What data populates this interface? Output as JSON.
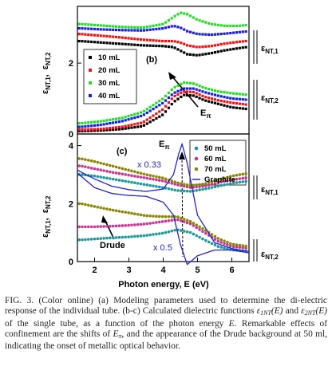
{
  "chart_data": [
    {
      "panel_label": "(b)",
      "type": "line",
      "xlim": [
        1.5,
        6.5
      ],
      "ylim": [
        0,
        3.6
      ],
      "y_ticks": [
        0,
        2
      ],
      "y_label_main": "ε",
      "y_label_sub_1": "NT,1",
      "y_label_comma": ",",
      "y_label_main_2": "ε",
      "y_label_sub_2": "NT,2",
      "right_labels": [
        {
          "main": "ε",
          "sub": "NT,1"
        },
        {
          "main": "ε",
          "sub": "NT,2"
        }
      ],
      "series": [
        {
          "name": "10 mL",
          "color": "#000000",
          "marker": "square"
        },
        {
          "name": "20 mL",
          "color": "#ee1111",
          "marker": "square"
        },
        {
          "name": "30 mL",
          "color": "#22dd22",
          "marker": "square"
        },
        {
          "name": "40 mL",
          "color": "#1a1ae6",
          "marker": "square"
        }
      ],
      "eps1": {
        "x": [
          1.6,
          2.2,
          2.8,
          3.4,
          4.0,
          4.3,
          4.5,
          4.7,
          5.0,
          5.4,
          5.8,
          6.2,
          6.5
        ],
        "10 mL": [
          2.62,
          2.58,
          2.54,
          2.5,
          2.48,
          2.45,
          2.35,
          2.25,
          2.22,
          2.28,
          2.36,
          2.42,
          2.46
        ],
        "20 mL": [
          2.82,
          2.77,
          2.72,
          2.66,
          2.62,
          2.62,
          2.58,
          2.5,
          2.45,
          2.48,
          2.55,
          2.6,
          2.63
        ],
        "30 mL": [
          3.1,
          3.06,
          3.02,
          3.0,
          3.1,
          3.3,
          3.42,
          3.38,
          3.22,
          3.1,
          3.05,
          3.05,
          3.08
        ],
        "40 mL": [
          2.98,
          2.95,
          2.93,
          2.92,
          2.98,
          3.05,
          3.0,
          2.9,
          2.82,
          2.8,
          2.83,
          2.87,
          2.9
        ]
      },
      "eps2": {
        "x": [
          1.6,
          2.2,
          2.8,
          3.4,
          4.0,
          4.3,
          4.6,
          4.9,
          5.2,
          5.6,
          6.0,
          6.5
        ],
        "10 mL": [
          0.08,
          0.1,
          0.14,
          0.22,
          0.55,
          0.9,
          1.1,
          1.08,
          0.95,
          0.85,
          0.75,
          0.7
        ],
        "20 mL": [
          0.12,
          0.14,
          0.2,
          0.32,
          0.7,
          1.05,
          1.2,
          1.18,
          1.05,
          0.95,
          0.88,
          0.82
        ],
        "30 mL": [
          0.3,
          0.36,
          0.45,
          0.62,
          1.0,
          1.3,
          1.45,
          1.42,
          1.3,
          1.2,
          1.15,
          1.1
        ],
        "40 mL": [
          0.2,
          0.26,
          0.36,
          0.52,
          0.88,
          1.15,
          1.28,
          1.28,
          1.18,
          1.08,
          1.0,
          0.96
        ]
      },
      "annotations": [
        {
          "text": "E",
          "sub": "π"
        }
      ]
    },
    {
      "panel_label": "(c)",
      "type": "line",
      "xlim": [
        1.5,
        6.5
      ],
      "ylim": [
        0,
        4.4
      ],
      "x_ticks": [
        2,
        3,
        4,
        5,
        6
      ],
      "y_ticks": [
        0,
        2,
        4
      ],
      "xlabel": "Photon energy, E (eV)",
      "y_label_main": "ε",
      "y_label_sub_1": "NT,1",
      "y_label_comma": ",",
      "y_label_main_2": "ε",
      "y_label_sub_2": "NT,2",
      "right_labels": [
        {
          "main": "ε",
          "sub": "NT,1"
        },
        {
          "main": "ε",
          "sub": "NT,2"
        }
      ],
      "series": [
        {
          "name": "50 mL",
          "color": "#1a9a9a",
          "marker": "circle"
        },
        {
          "name": "60 mL",
          "color": "#cc3399",
          "marker": "circle"
        },
        {
          "name": "70 mL",
          "color": "#888800",
          "marker": "circle"
        },
        {
          "name": "Graphite",
          "color": "#2222cc",
          "marker": "line"
        }
      ],
      "eps1": {
        "x": [
          1.6,
          2.0,
          2.5,
          3.0,
          3.5,
          4.0,
          4.4,
          4.8,
          5.2,
          5.6,
          6.0,
          6.5
        ],
        "50 mL": [
          3.0,
          2.95,
          2.85,
          2.75,
          2.65,
          2.55,
          2.45,
          2.42,
          2.5,
          2.6,
          2.7,
          2.78
        ],
        "60 mL": [
          3.3,
          3.2,
          3.08,
          2.98,
          2.88,
          2.78,
          2.65,
          2.55,
          2.6,
          2.72,
          2.82,
          2.9
        ],
        "70 mL": [
          3.55,
          3.45,
          3.3,
          3.15,
          3.0,
          2.88,
          2.72,
          2.62,
          2.68,
          2.82,
          2.95,
          3.05
        ]
      },
      "eps2": {
        "x": [
          1.6,
          2.0,
          2.5,
          3.0,
          3.5,
          4.0,
          4.4,
          4.8,
          5.2,
          5.6,
          6.0,
          6.5
        ],
        "50 mL": [
          0.75,
          0.78,
          0.82,
          0.85,
          0.9,
          0.98,
          1.1,
          1.0,
          0.75,
          0.52,
          0.4,
          0.35
        ],
        "60 mL": [
          1.2,
          1.2,
          1.22,
          1.25,
          1.3,
          1.38,
          1.45,
          1.3,
          1.0,
          0.7,
          0.52,
          0.45
        ],
        "70 mL": [
          2.0,
          1.9,
          1.78,
          1.68,
          1.58,
          1.55,
          1.55,
          1.38,
          1.1,
          0.8,
          0.6,
          0.52
        ]
      },
      "graphite_eps1": {
        "x": [
          1.5,
          2.0,
          2.5,
          3.0,
          3.5,
          4.0,
          4.3,
          4.5,
          4.7,
          5.0,
          5.5,
          6.0,
          6.5
        ],
        "y": [
          3.05,
          2.55,
          2.35,
          2.28,
          2.25,
          2.05,
          1.6,
          0.6,
          -0.1,
          0.2,
          0.4,
          0.4,
          0.3
        ]
      },
      "graphite_eps2": {
        "x": [
          1.5,
          2.0,
          2.5,
          3.0,
          3.5,
          4.0,
          4.3,
          4.45,
          4.55,
          4.7,
          5.0,
          5.5,
          6.0,
          6.5
        ],
        "y": [
          3.15,
          2.85,
          2.6,
          2.48,
          2.42,
          2.5,
          3.0,
          3.7,
          4.05,
          3.4,
          1.6,
          0.65,
          0.45,
          0.35
        ]
      },
      "annotations": [
        {
          "text": "x 0.33"
        },
        {
          "text": "x 0.5"
        },
        {
          "text": "Drude"
        },
        {
          "text": "E",
          "sub": "π"
        }
      ]
    }
  ],
  "caption": {
    "part1": "FIG. 3. (Color online) (a) Modeling parameters used to determine the di-electric response of the individual tube. (b-c) Calculated dielectric functions ",
    "eps_symbol": "ε",
    "eps1_sub": "1NT",
    "eps2_sub": "2NT",
    "arg": "(E)",
    "and": " and ",
    "part2": " of the single tube, as a function of the photon energy ",
    "E": "E",
    "part3": ". Remarkable effects of confinement are the shifts of ",
    "E_pi_sub": "π",
    "part4": ", and the appearance of the Drude background at 50 ml, indicating the onset of metallic optical behavior."
  }
}
